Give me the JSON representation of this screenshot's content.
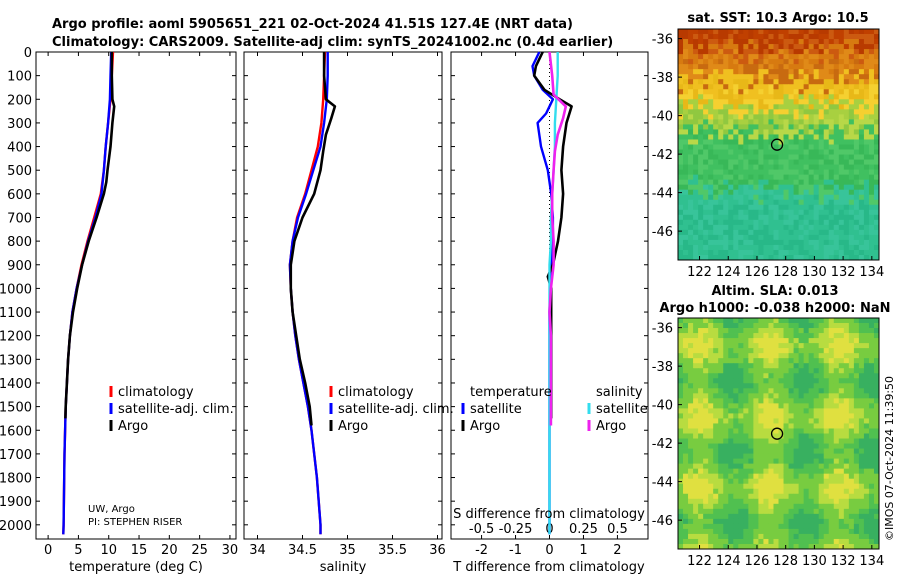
{
  "header": {
    "line1": "Argo profile: aoml 5905651_221 02-Oct-2024 41.51S 127.4E (NRT data)",
    "line2": "Climatology: CARS2009. Satellite-adj clim: synTS_20241002.nc (0.4d earlier)"
  },
  "credit": {
    "line1": "UW, Argo",
    "line2": "PI: STEPHEN RISER"
  },
  "stamp": "©IMOS 07-Oct-2024 11:39:50",
  "colors": {
    "climatology": "#ff0000",
    "satellite": "#0000ff",
    "argo": "#000000",
    "sat_diff": "#33ddee",
    "argo_sal_diff": "#ee22ee"
  },
  "chart_data": [
    {
      "id": "temperature",
      "type": "line",
      "xlabel": "temperature (deg C)",
      "ylabel": "",
      "xlim": [
        -2,
        31
      ],
      "ylim": [
        2060,
        0
      ],
      "xticks": [
        0,
        5,
        10,
        15,
        20,
        25,
        30
      ],
      "xtick_labels": [
        "0",
        "5",
        "10",
        "15",
        "20",
        "25",
        "30"
      ],
      "yticks": [
        0,
        100,
        200,
        300,
        400,
        500,
        600,
        700,
        800,
        900,
        1000,
        1100,
        1200,
        1300,
        1400,
        1500,
        1600,
        1700,
        1800,
        1900,
        2000
      ],
      "ytick_labels": [
        "0",
        "100",
        "200",
        "300",
        "400",
        "500",
        "600",
        "700",
        "800",
        "900",
        "1000",
        "1100",
        "1200",
        "1300",
        "1400",
        "1500",
        "1600",
        "1700",
        "1800",
        "1900",
        "2000"
      ],
      "legend": [
        "climatology",
        "satellite-adj. clim.",
        "Argo"
      ],
      "series": [
        {
          "name": "climatology",
          "color": "#ff0000",
          "depth": [
            0,
            100,
            200,
            300,
            400,
            500,
            600,
            700,
            800,
            900,
            1000,
            1100,
            1200,
            1300,
            1400,
            1500,
            1600,
            1700,
            1800,
            1900,
            2000,
            2040
          ],
          "values": [
            10.7,
            10.5,
            10.3,
            9.9,
            9.5,
            9.2,
            8.7,
            7.6,
            6.5,
            5.5,
            4.7,
            4.0,
            3.6,
            3.3,
            3.1,
            2.9,
            2.8,
            2.7,
            2.65,
            2.6,
            2.55,
            2.5
          ]
        },
        {
          "name": "satellite-adj. clim.",
          "color": "#0000ff",
          "depth": [
            0,
            100,
            200,
            300,
            400,
            500,
            600,
            700,
            800,
            900,
            1000,
            1100,
            1200,
            1300,
            1400,
            1500,
            1600,
            1700,
            1800,
            1900,
            2000,
            2040
          ],
          "values": [
            10.4,
            10.3,
            10.2,
            9.9,
            9.5,
            9.2,
            8.8,
            7.8,
            6.6,
            5.6,
            4.7,
            4.0,
            3.6,
            3.3,
            3.1,
            2.9,
            2.8,
            2.7,
            2.65,
            2.6,
            2.55,
            2.5
          ]
        },
        {
          "name": "Argo",
          "color": "#000000",
          "depth": [
            0,
            100,
            200,
            230,
            300,
            400,
            500,
            550,
            600,
            700,
            800,
            900,
            1000,
            1100,
            1200,
            1300,
            1400,
            1500,
            1550
          ],
          "values": [
            10.5,
            10.5,
            10.6,
            10.9,
            10.6,
            10.3,
            9.8,
            9.6,
            9.2,
            8.0,
            6.7,
            5.6,
            4.8,
            4.1,
            3.6,
            3.3,
            3.1,
            2.9,
            2.85
          ]
        }
      ]
    },
    {
      "id": "salinity",
      "type": "line",
      "xlabel": "salinity",
      "xlim": [
        33.85,
        36.05
      ],
      "ylim": [
        2060,
        0
      ],
      "xticks": [
        34,
        34.5,
        35,
        35.5,
        36
      ],
      "xtick_labels": [
        "34",
        "34.5",
        "35",
        "35.5",
        "36"
      ],
      "legend": [
        "climatology",
        "satellite-adj. clim.",
        "Argo"
      ],
      "series": [
        {
          "name": "climatology",
          "color": "#ff0000",
          "depth": [
            0,
            100,
            200,
            300,
            400,
            500,
            600,
            700,
            800,
            900,
            1000,
            1100,
            1200,
            1300,
            1400,
            1500,
            1600,
            1700,
            1800,
            1900,
            2000,
            2040
          ],
          "values": [
            34.75,
            34.74,
            34.73,
            34.71,
            34.67,
            34.6,
            34.53,
            34.44,
            34.39,
            34.36,
            34.37,
            34.39,
            34.42,
            34.46,
            34.51,
            34.56,
            34.6,
            34.63,
            34.66,
            34.68,
            34.7,
            34.7
          ]
        },
        {
          "name": "satellite-adj. clim.",
          "color": "#0000ff",
          "depth": [
            0,
            100,
            200,
            300,
            400,
            500,
            600,
            700,
            800,
            900,
            1000,
            1100,
            1200,
            1300,
            1400,
            1500,
            1600,
            1700,
            1800,
            1900,
            2000,
            2040
          ],
          "values": [
            34.78,
            34.78,
            34.77,
            34.74,
            34.7,
            34.62,
            34.54,
            34.45,
            34.39,
            34.36,
            34.37,
            34.39,
            34.42,
            34.46,
            34.51,
            34.56,
            34.6,
            34.63,
            34.66,
            34.68,
            34.7,
            34.7
          ]
        },
        {
          "name": "Argo",
          "color": "#000000",
          "depth": [
            0,
            100,
            200,
            230,
            280,
            350,
            420,
            500,
            600,
            700,
            800,
            900,
            1000,
            1100,
            1200,
            1300,
            1400,
            1500,
            1580
          ],
          "values": [
            34.74,
            34.74,
            34.76,
            34.86,
            34.82,
            34.76,
            34.73,
            34.7,
            34.63,
            34.5,
            34.41,
            34.37,
            34.37,
            34.39,
            34.43,
            34.47,
            34.53,
            34.58,
            34.6
          ]
        }
      ]
    },
    {
      "id": "difference",
      "type": "line",
      "xlabel": "T difference from climatology",
      "x2label": "S difference from climatology",
      "xlim": [
        -2.9,
        2.9
      ],
      "ylim": [
        2060,
        0
      ],
      "xticks": [
        -2,
        -1,
        0,
        1,
        2
      ],
      "xtick_labels": [
        "-2",
        "-1",
        "0",
        "1",
        "2"
      ],
      "x2ticks": [
        -0.5,
        -0.25,
        0,
        0.25,
        0.5
      ],
      "x2tick_labels": [
        "-0.5",
        "-0.25",
        "0",
        "0.25",
        "0.5"
      ],
      "legend_left_title": "temperature",
      "legend_right_title": "salinity",
      "legend_left": [
        "satellite",
        "Argo"
      ],
      "legend_right": [
        "satellite",
        "Argo"
      ],
      "series": [
        {
          "name": "T satellite",
          "color": "#0000ff",
          "depth": [
            0,
            60,
            100,
            160,
            200,
            260,
            300,
            400,
            500,
            600,
            700,
            800,
            900,
            1000,
            1100,
            1200,
            1300,
            1400,
            1500,
            1600,
            1700,
            1800,
            1900,
            2000,
            2040
          ],
          "values": [
            -0.3,
            -0.5,
            -0.45,
            -0.2,
            0.1,
            -0.1,
            -0.35,
            -0.25,
            -0.05,
            0.05,
            0.1,
            0.1,
            0.05,
            0.02,
            0.0,
            0.0,
            0.0,
            0.0,
            0.0,
            0.0,
            0.0,
            0.0,
            0.0,
            0.0,
            0.0
          ]
        },
        {
          "name": "T Argo",
          "color": "#000000",
          "depth": [
            0,
            60,
            100,
            160,
            200,
            230,
            300,
            400,
            500,
            600,
            700,
            800,
            900,
            950,
            1000,
            1100,
            1200,
            1300,
            1400,
            1500,
            1550
          ],
          "values": [
            -0.2,
            -0.4,
            -0.45,
            -0.15,
            0.3,
            0.65,
            0.5,
            0.4,
            0.35,
            0.4,
            0.35,
            0.25,
            0.1,
            -0.05,
            0.05,
            0.05,
            0.05,
            0.05,
            0.05,
            0.05,
            0.05
          ]
        },
        {
          "name": "S satellite",
          "color": "#33ddee",
          "depth": [
            0,
            100,
            200,
            300,
            400,
            500,
            600,
            700,
            800,
            900,
            1000,
            1100,
            1200,
            1300,
            1400,
            1500,
            1600,
            1700,
            1800,
            1900,
            2000,
            2040
          ],
          "values": [
            0.06,
            0.06,
            0.05,
            0.04,
            0.04,
            0.03,
            0.02,
            0.01,
            0.01,
            0.0,
            0.0,
            0.0,
            0.0,
            0.0,
            0.0,
            0.0,
            0.0,
            0.0,
            0.0,
            0.0,
            0.0,
            0.0
          ]
        },
        {
          "name": "S Argo",
          "color": "#ee22ee",
          "depth": [
            0,
            100,
            180,
            230,
            280,
            350,
            420,
            500,
            600,
            700,
            800,
            900,
            1000,
            1100,
            1200,
            1300,
            1400,
            1500,
            1580
          ],
          "values": [
            0.0,
            0.02,
            0.03,
            0.12,
            0.1,
            0.06,
            0.04,
            0.03,
            0.02,
            0.02,
            0.03,
            0.03,
            0.01,
            0.0,
            0.01,
            0.01,
            0.01,
            0.01,
            0.01
          ]
        }
      ]
    },
    {
      "id": "sst_map",
      "type": "heatmap",
      "title": "sat. SST: 10.3  Argo: 10.5",
      "xlim": [
        120.5,
        134.5
      ],
      "ylim": [
        -47.5,
        -35.5
      ],
      "xticks": [
        122,
        124,
        126,
        128,
        130,
        132,
        134
      ],
      "xtick_labels": [
        "122",
        "124",
        "126",
        "128",
        "130",
        "132",
        "134"
      ],
      "yticks": [
        -36,
        -38,
        -40,
        -42,
        -44,
        -46
      ],
      "ytick_labels": [
        "-36",
        "-38",
        "-40",
        "-42",
        "-44",
        "-46"
      ],
      "marker": {
        "lon": 127.4,
        "lat": -41.51
      }
    },
    {
      "id": "sla_map",
      "type": "heatmap",
      "title1": "Altim. SLA: 0.013",
      "title2": "Argo h1000: -0.038 h2000: NaN",
      "xlim": [
        120.5,
        134.5
      ],
      "ylim": [
        -47.5,
        -35.5
      ],
      "xticks": [
        122,
        124,
        126,
        128,
        130,
        132,
        134
      ],
      "xtick_labels": [
        "122",
        "124",
        "126",
        "128",
        "130",
        "132",
        "134"
      ],
      "yticks": [
        -36,
        -38,
        -40,
        -42,
        -44,
        -46
      ],
      "ytick_labels": [
        "-36",
        "-38",
        "-40",
        "-42",
        "-44",
        "-46"
      ],
      "marker": {
        "lon": 127.4,
        "lat": -41.51
      }
    }
  ]
}
